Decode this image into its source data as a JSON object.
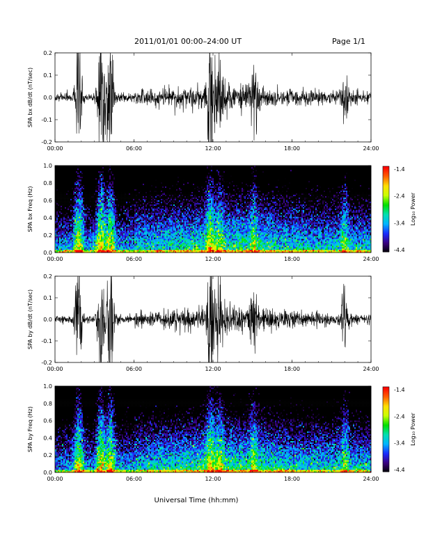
{
  "header": {
    "title": "2011/01/01  00:00–24:00 UT",
    "page": "Page 1/1"
  },
  "xaxis_label": "Universal Time (hh:mm)",
  "colorbar": {
    "label": "Log₁₀ Power",
    "ticks": [
      "-1.4",
      "-2.4",
      "-3.4",
      "-4.4"
    ],
    "range": [
      -4.4,
      -1.4
    ],
    "colormap": [
      "#000000",
      "#3a0080",
      "#1a2cff",
      "#00b4ff",
      "#00e0b0",
      "#00e000",
      "#c8ff00",
      "#ffe000",
      "#ff6000",
      "#ff0000"
    ]
  },
  "chart_data": [
    {
      "type": "line",
      "ylabel": "SPA bx dB/dt (nT/sec)",
      "x_ticks": [
        "00:00",
        "06:00",
        "12:00",
        "18:00",
        "24:00"
      ],
      "y_ticks": [
        "0.2",
        "0.1",
        "0.0",
        "-0.1",
        "-0.2"
      ],
      "xlim": [
        0,
        24
      ],
      "ylim": [
        -0.2,
        0.2
      ],
      "line_color": "#000000",
      "activity_bursts_hours": [
        [
          1.8,
          0.2
        ],
        [
          3.5,
          0.25
        ],
        [
          4.2,
          0.2
        ],
        [
          11.8,
          0.2
        ],
        [
          12.5,
          0.12
        ],
        [
          15.1,
          0.1
        ],
        [
          22.0,
          0.08
        ]
      ]
    },
    {
      "type": "heatmap",
      "ylabel": "SPA bx Freq (Hz)",
      "x_ticks": [
        "00:00",
        "06:00",
        "12:00",
        "18:00",
        "24:00"
      ],
      "y_ticks": [
        "1.0",
        "0.8",
        "0.6",
        "0.4",
        "0.2",
        "0.0"
      ],
      "xlim": [
        0,
        24
      ],
      "ylim": [
        0,
        1.0
      ],
      "zlim": [
        -4.4,
        -1.4
      ]
    },
    {
      "type": "line",
      "ylabel": "SPA by dB/dt (nT/sec)",
      "x_ticks": [
        "00:00",
        "06:00",
        "12:00",
        "18:00",
        "24:00"
      ],
      "y_ticks": [
        "0.2",
        "0.1",
        "0.0",
        "-0.1",
        "-0.2"
      ],
      "xlim": [
        0,
        24
      ],
      "ylim": [
        -0.2,
        0.2
      ],
      "line_color": "#000000",
      "activity_bursts_hours": [
        [
          1.8,
          0.2
        ],
        [
          3.5,
          0.25
        ],
        [
          4.2,
          0.2
        ],
        [
          11.8,
          0.22
        ],
        [
          12.5,
          0.15
        ],
        [
          15.1,
          0.1
        ],
        [
          22.0,
          0.08
        ]
      ]
    },
    {
      "type": "heatmap",
      "ylabel": "SPA by Freq (Hz)",
      "x_ticks": [
        "00:00",
        "06:00",
        "12:00",
        "18:00",
        "24:00"
      ],
      "y_ticks": [
        "1.0",
        "0.8",
        "0.6",
        "0.4",
        "0.2",
        "0.0"
      ],
      "xlim": [
        0,
        24
      ],
      "ylim": [
        0,
        1.0
      ],
      "zlim": [
        -4.4,
        -1.4
      ]
    }
  ]
}
